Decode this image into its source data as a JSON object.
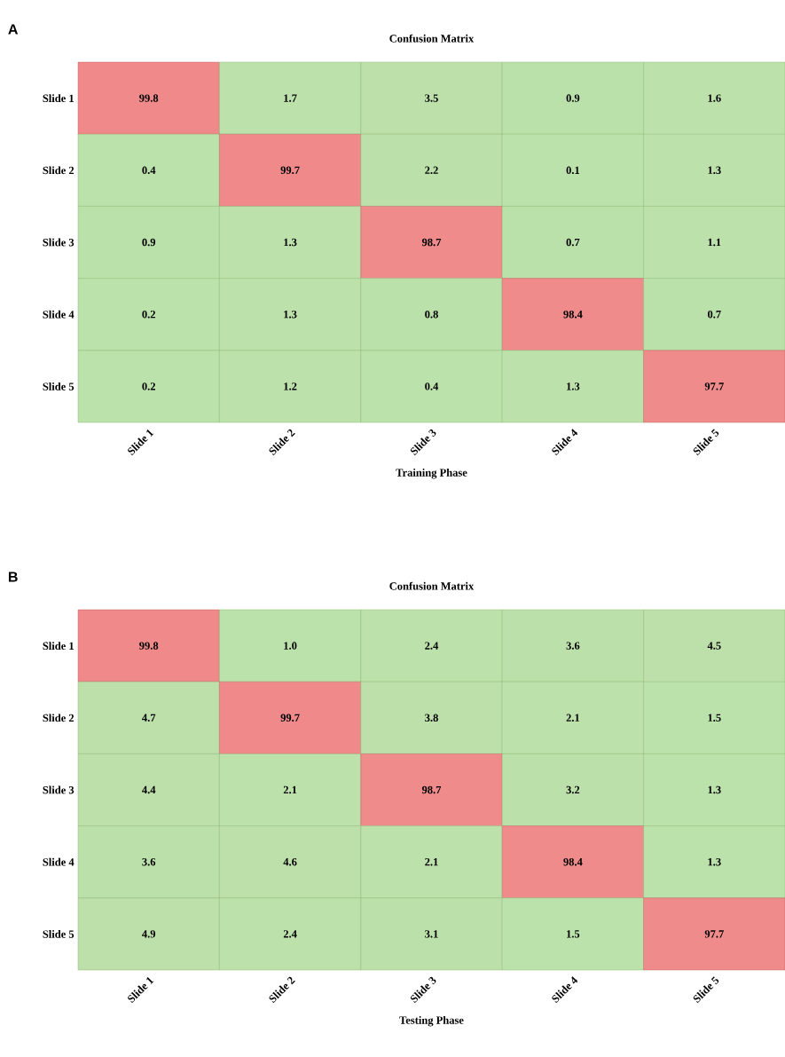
{
  "chart_data": [
    {
      "type": "heatmap",
      "title": "Confusion Matrix",
      "xlabel": "Training Phase",
      "annotations": [
        "A"
      ],
      "categories": [
        "Slide 1",
        "Slide 2",
        "Slide 3",
        "Slide 4",
        "Slide 5"
      ],
      "y_categories": [
        "Slide 1",
        "Slide 2",
        "Slide 3",
        "Slide 4",
        "Slide 5"
      ],
      "cells": [
        [
          99.8,
          1.7,
          3.5,
          0.9,
          1.6
        ],
        [
          0.4,
          99.7,
          2.2,
          0.1,
          1.3
        ],
        [
          0.9,
          1.3,
          98.7,
          0.7,
          1.1
        ],
        [
          0.2,
          1.3,
          0.8,
          98.4,
          0.7
        ],
        [
          0.2,
          1.2,
          0.4,
          1.3,
          97.7
        ]
      ],
      "cell_labels": [
        [
          "99.8",
          "1.7",
          "3.5",
          "0.9",
          "1.6"
        ],
        [
          "0.4",
          "99.7",
          "2.2",
          "0.1",
          "1.3"
        ],
        [
          "0.9",
          "1.3",
          "98.7",
          "0.7",
          "1.1"
        ],
        [
          "0.2",
          "1.3",
          "0.8",
          "98.4",
          "0.7"
        ],
        [
          "0.2",
          "1.2",
          "0.4",
          "1.3",
          "97.7"
        ]
      ]
    },
    {
      "type": "heatmap",
      "title": "Confusion Matrix",
      "xlabel": "Testing Phase",
      "annotations": [
        "B"
      ],
      "categories": [
        "Slide 1",
        "Slide 2",
        "Slide 3",
        "Slide 4",
        "Slide 5"
      ],
      "y_categories": [
        "Slide 1",
        "Slide 2",
        "Slide 3",
        "Slide 4",
        "Slide 5"
      ],
      "cells": [
        [
          99.8,
          1.0,
          2.4,
          3.6,
          4.5
        ],
        [
          4.7,
          99.7,
          3.8,
          2.1,
          1.5
        ],
        [
          4.4,
          2.1,
          98.7,
          3.2,
          1.3
        ],
        [
          3.6,
          4.6,
          2.1,
          98.4,
          1.3
        ],
        [
          4.9,
          2.4,
          3.1,
          1.5,
          97.7
        ]
      ],
      "cell_labels": [
        [
          "99.8",
          "1.0",
          "2.4",
          "3.6",
          "4.5"
        ],
        [
          "4.7",
          "99.7",
          "3.8",
          "2.1",
          "1.5"
        ],
        [
          "4.4",
          "2.1",
          "98.7",
          "3.2",
          "1.3"
        ],
        [
          "3.6",
          "4.6",
          "2.1",
          "98.4",
          "1.3"
        ],
        [
          "4.9",
          "2.4",
          "3.1",
          "1.5",
          "97.7"
        ]
      ]
    }
  ]
}
